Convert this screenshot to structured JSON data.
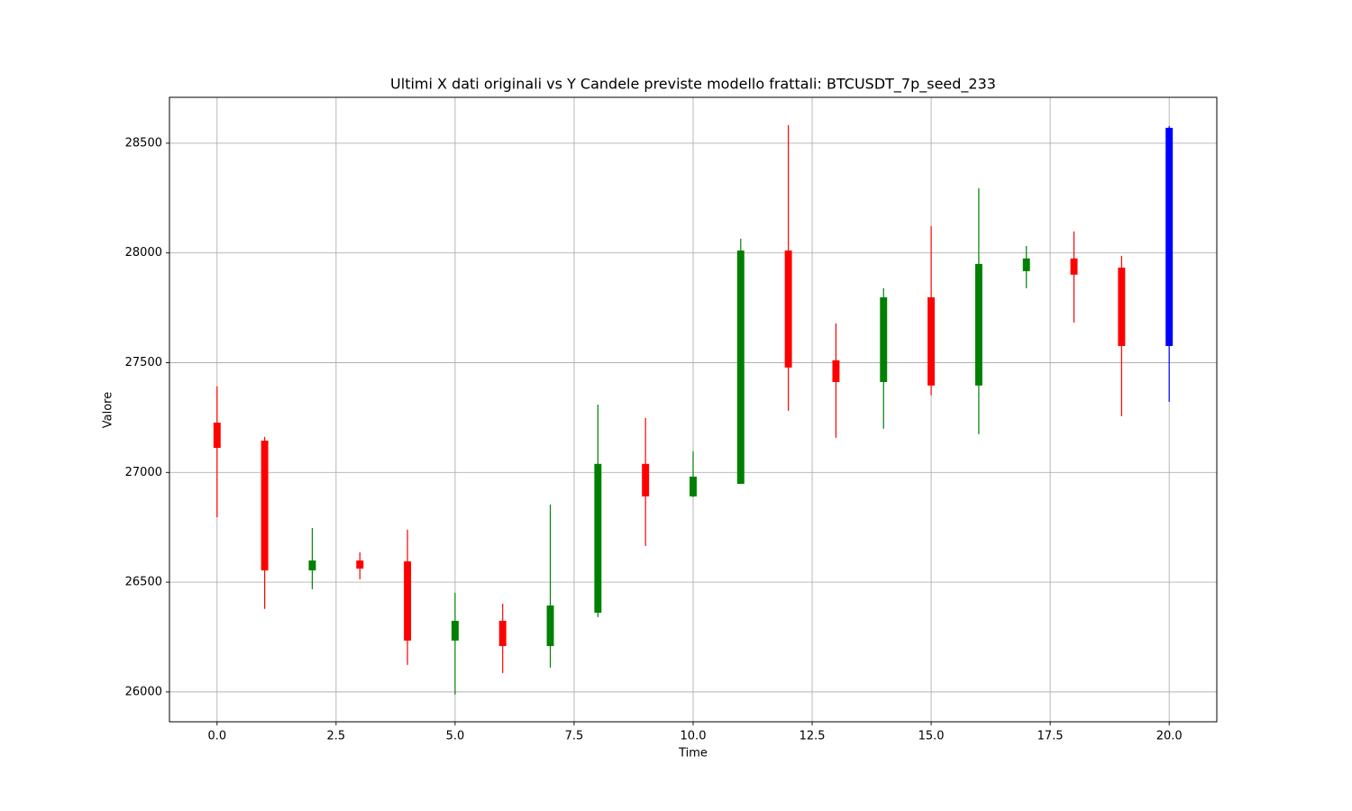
{
  "chart_data": {
    "type": "candlestick",
    "title": "Ultimi X dati originali vs Y Candele previste modello frattali: BTCUSDT_7p_seed_233",
    "xlabel": "Time",
    "ylabel": "Valore",
    "x": [
      0,
      1,
      2,
      3,
      4,
      5,
      6,
      7,
      8,
      9,
      10,
      11,
      12,
      13,
      14,
      15,
      16,
      17,
      18,
      19,
      20
    ],
    "open": [
      27227,
      27145,
      26554,
      26599,
      26595,
      26234,
      26324,
      26209,
      26361,
      27039,
      26891,
      26948,
      28011,
      27511,
      27412,
      27798,
      27396,
      27917,
      27975,
      27933,
      27576
    ],
    "high": [
      27392,
      27162,
      26747,
      26636,
      26739,
      26452,
      26402,
      26854,
      27309,
      27248,
      27096,
      28065,
      28582,
      27679,
      27839,
      28122,
      28295,
      28032,
      28098,
      27987,
      28578
    ],
    "low": [
      26796,
      26378,
      26468,
      26513,
      26123,
      25988,
      26086,
      26111,
      26341,
      26665,
      26887,
      26948,
      27281,
      27158,
      27199,
      27351,
      27174,
      27839,
      27683,
      27256,
      27322
    ],
    "close": [
      27112,
      26554,
      26599,
      26562,
      26234,
      26324,
      26209,
      26394,
      27039,
      26891,
      26981,
      28011,
      27478,
      27412,
      27798,
      27396,
      27950,
      27975,
      27901,
      27576,
      28570
    ],
    "colors": [
      "red",
      "red",
      "green",
      "red",
      "red",
      "green",
      "red",
      "green",
      "green",
      "red",
      "green",
      "green",
      "red",
      "red",
      "green",
      "red",
      "green",
      "green",
      "red",
      "red",
      "blue"
    ],
    "xlim": [
      -1,
      21
    ],
    "ylim": [
      25864,
      28709
    ],
    "xticks": [
      {
        "value": 0,
        "label": "0.0"
      },
      {
        "value": 2.5,
        "label": "2.5"
      },
      {
        "value": 5,
        "label": "5.0"
      },
      {
        "value": 7.5,
        "label": "7.5"
      },
      {
        "value": 10,
        "label": "10.0"
      },
      {
        "value": 12.5,
        "label": "12.5"
      },
      {
        "value": 15,
        "label": "15.0"
      },
      {
        "value": 17.5,
        "label": "17.5"
      },
      {
        "value": 20,
        "label": "20.0"
      }
    ],
    "yticks": [
      26000,
      26500,
      27000,
      27500,
      28000,
      28500
    ],
    "grid": true
  }
}
